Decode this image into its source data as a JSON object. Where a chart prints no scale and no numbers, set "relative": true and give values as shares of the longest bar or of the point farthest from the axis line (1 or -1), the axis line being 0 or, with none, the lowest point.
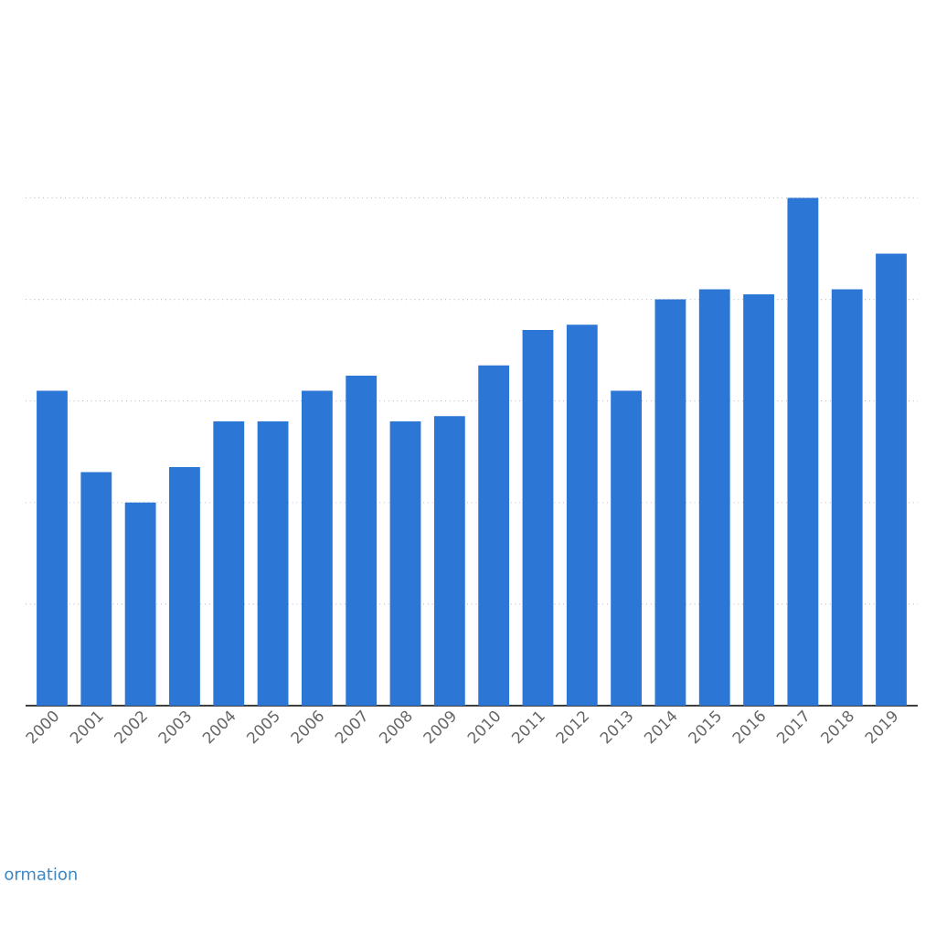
{
  "chart_data": {
    "type": "bar",
    "relative": true,
    "grid": "y",
    "color": "#2c76d6",
    "categories": [
      "2000",
      "2001",
      "2002",
      "2003",
      "2004",
      "2005",
      "2006",
      "2007",
      "2008",
      "2009",
      "2010",
      "2011",
      "2012",
      "2013",
      "2014",
      "2015",
      "2016",
      "2017",
      "2018",
      "2019"
    ],
    "values": [
      0.62,
      0.46,
      0.4,
      0.47,
      0.56,
      0.56,
      0.62,
      0.65,
      0.56,
      0.57,
      0.67,
      0.74,
      0.75,
      0.62,
      0.8,
      0.82,
      0.81,
      1,
      0.82,
      0.89
    ],
    "annotations": [
      "ormation"
    ]
  }
}
